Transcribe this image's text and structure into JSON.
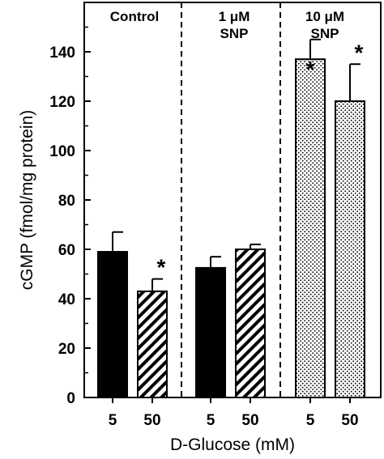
{
  "chart_data": {
    "type": "bar",
    "ylabel": "cGMP (fmol/mg protein)",
    "xlabel": "D-Glucose (mM)",
    "ylim": [
      0,
      160
    ],
    "yticks": [
      0,
      20,
      40,
      60,
      80,
      100,
      120,
      140
    ],
    "grid": false,
    "groups": [
      {
        "label_lines": [
          "Control"
        ],
        "bars": [
          {
            "glucose": "5",
            "value": 59,
            "error": 8,
            "significant": false,
            "pattern": "solid"
          },
          {
            "glucose": "50",
            "value": 43,
            "error": 5,
            "significant": true,
            "pattern": "hatched"
          }
        ]
      },
      {
        "label_lines": [
          "1 μM",
          "SNP"
        ],
        "bars": [
          {
            "glucose": "5",
            "value": 52.5,
            "error": 4.5,
            "significant": false,
            "pattern": "solid"
          },
          {
            "glucose": "50",
            "value": 60,
            "error": 2,
            "significant": false,
            "pattern": "hatched"
          }
        ]
      },
      {
        "label_lines": [
          "10 μM",
          "SNP"
        ],
        "bars": [
          {
            "glucose": "5",
            "value": 137,
            "error": 8,
            "significant": true,
            "pattern": "dotted"
          },
          {
            "glucose": "50",
            "value": 120,
            "error": 15,
            "significant": true,
            "pattern": "dotted"
          }
        ]
      }
    ],
    "significance_marker": "*"
  }
}
